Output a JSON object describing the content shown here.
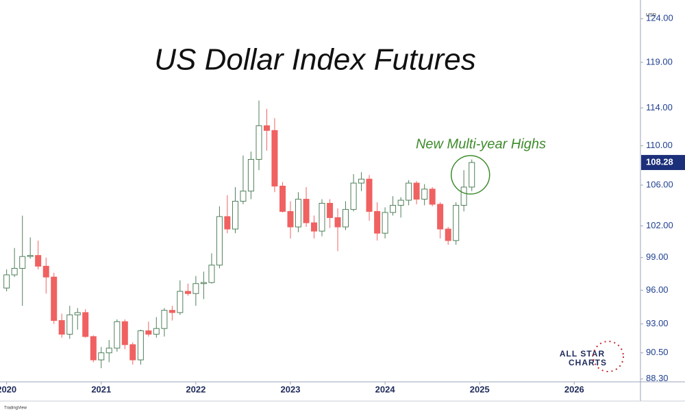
{
  "chart_data": {
    "type": "candlestick",
    "title": "US Dollar Index Futures",
    "currency": "USD",
    "annotation": "New Multi-year Highs",
    "watermark": [
      "ALL STAR",
      "CHARTS"
    ],
    "branding": "TradingView",
    "log_scale": true,
    "up_color": "#ffffff",
    "up_border": "#4f7f5a",
    "down_color": "#f06161",
    "annotation_color": "#3d8b2c",
    "axis_color": "#1f3f8f",
    "x": [
      2020.0,
      2020.083,
      2020.167,
      2020.25,
      2020.333,
      2020.417,
      2020.5,
      2020.583,
      2020.667,
      2020.75,
      2020.833,
      2020.917,
      2021.0,
      2021.083,
      2021.167,
      2021.25,
      2021.333,
      2021.417,
      2021.5,
      2021.583,
      2021.667,
      2021.75,
      2021.833,
      2021.917,
      2022.0,
      2022.083,
      2022.167,
      2022.25,
      2022.333,
      2022.417,
      2022.5,
      2022.583,
      2022.667,
      2022.75,
      2022.833,
      2022.917,
      2023.0,
      2023.083,
      2023.167,
      2023.25,
      2023.333,
      2023.417,
      2023.5,
      2023.583,
      2023.667,
      2023.75,
      2023.833,
      2023.917,
      2024.0,
      2024.083,
      2024.167,
      2024.25,
      2024.333,
      2024.417,
      2024.5,
      2024.583,
      2024.667,
      2024.75,
      2024.833,
      2024.917
    ],
    "open": [
      96.2,
      97.4,
      98.0,
      99.1,
      99.2,
      98.2,
      97.2,
      93.3,
      92.1,
      93.8,
      94.0,
      91.9,
      89.9,
      90.5,
      90.9,
      93.2,
      91.2,
      89.9,
      92.4,
      92.1,
      92.6,
      94.2,
      94.0,
      95.9,
      95.7,
      96.6,
      96.7,
      98.3,
      102.9,
      101.7,
      104.4,
      105.4,
      108.6,
      112.1,
      111.6,
      105.9,
      103.4,
      101.9,
      104.6,
      102.3,
      101.5,
      104.2,
      102.8,
      101.9,
      103.6,
      106.2,
      106.6,
      103.4,
      101.3,
      103.3,
      104.0,
      104.5,
      106.2,
      104.6,
      105.6,
      104.1,
      101.7,
      100.6,
      104.0,
      105.8
    ],
    "high": [
      97.9,
      99.9,
      102.99,
      100.9,
      100.6,
      99.0,
      97.6,
      93.9,
      94.6,
      94.4,
      94.3,
      92.0,
      91.0,
      91.6,
      93.4,
      93.4,
      91.4,
      92.5,
      93.2,
      93.6,
      94.4,
      94.6,
      96.9,
      96.6,
      97.3,
      97.7,
      99.4,
      103.9,
      105.0,
      105.8,
      109.0,
      109.4,
      114.8,
      113.9,
      112.9,
      106.3,
      104.4,
      105.3,
      105.8,
      103.0,
      104.6,
      104.6,
      103.7,
      104.4,
      107.1,
      107.3,
      107.0,
      104.3,
      103.8,
      104.9,
      104.8,
      106.5,
      106.4,
      106.1,
      105.8,
      104.3,
      101.9,
      104.3,
      107.5,
      108.6
    ],
    "low": [
      95.9,
      97.2,
      94.6,
      98.9,
      97.9,
      95.7,
      93.0,
      91.8,
      91.7,
      92.5,
      91.8,
      89.7,
      89.2,
      89.7,
      90.6,
      90.8,
      89.5,
      89.5,
      91.9,
      91.8,
      91.9,
      93.3,
      93.8,
      95.5,
      94.6,
      95.2,
      96.6,
      98.0,
      101.3,
      101.3,
      104.1,
      104.6,
      107.5,
      109.5,
      105.3,
      103.3,
      100.8,
      101.4,
      101.9,
      100.8,
      101.0,
      101.8,
      99.6,
      101.6,
      103.4,
      105.4,
      102.5,
      100.6,
      100.8,
      103.0,
      102.8,
      104.0,
      104.1,
      104.0,
      103.9,
      100.8,
      100.2,
      100.2,
      103.4,
      105.4
    ],
    "close": [
      97.4,
      98.0,
      99.1,
      99.2,
      98.2,
      97.2,
      93.3,
      92.1,
      93.8,
      94.0,
      91.9,
      89.9,
      90.5,
      90.9,
      93.2,
      91.2,
      89.9,
      92.4,
      92.1,
      92.6,
      94.2,
      94.0,
      95.9,
      95.7,
      96.6,
      96.7,
      98.3,
      102.9,
      101.7,
      104.4,
      105.4,
      108.6,
      112.1,
      111.6,
      105.9,
      103.4,
      101.9,
      104.6,
      102.3,
      101.5,
      104.2,
      102.8,
      101.9,
      103.6,
      106.2,
      106.6,
      103.4,
      101.3,
      103.3,
      104.0,
      104.5,
      106.2,
      104.6,
      105.6,
      104.1,
      101.7,
      100.6,
      104.0,
      105.8,
      108.28
    ],
    "xlim": [
      2019.93,
      2026.7
    ],
    "xticks": [
      2020,
      2021,
      2022,
      2023,
      2024,
      2025,
      2026
    ],
    "ylim": [
      88.06,
      126.2
    ],
    "yticks": [
      {
        "value": 88.3,
        "label": "88.30"
      },
      {
        "value": 90.5,
        "label": "90.50"
      },
      {
        "value": 93,
        "label": "93.00"
      },
      {
        "value": 96,
        "label": "96.00"
      },
      {
        "value": 99,
        "label": "99.00"
      },
      {
        "value": 102,
        "label": "102.00"
      },
      {
        "value": 106,
        "label": "106.00"
      },
      {
        "value": 110,
        "label": "110.00"
      },
      {
        "value": 114,
        "label": "114.00"
      },
      {
        "value": 119,
        "label": "119.00"
      },
      {
        "value": 124,
        "label": "124.00"
      }
    ]
  }
}
